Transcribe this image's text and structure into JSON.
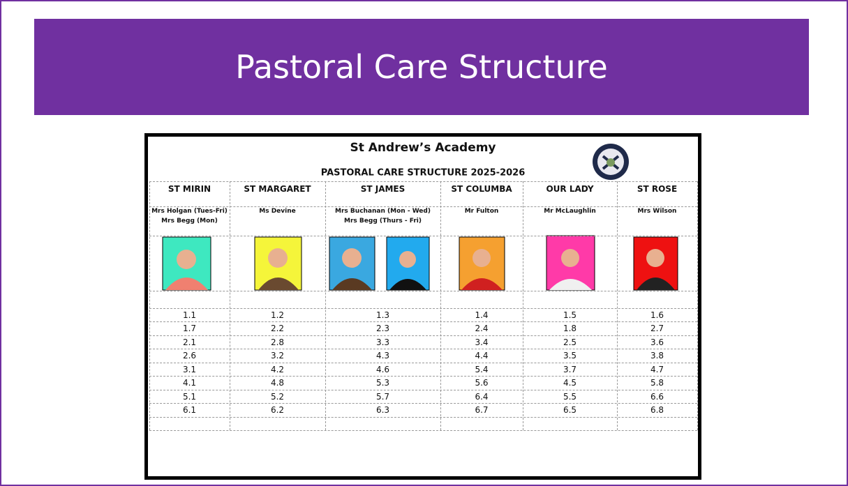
{
  "header": {
    "title": "Pastoral Care Structure"
  },
  "document": {
    "school": "St Andrew’s Academy",
    "subtitle": "PASTORAL CARE STRUCTURE 2025-2026"
  },
  "table": {
    "houses": [
      "ST MIRIN",
      "ST MARGARET",
      "ST JAMES",
      "ST COLUMBA",
      "OUR LADY",
      "ST ROSE"
    ],
    "staff": [
      [
        "Mrs Holgan (Tues-Fri)",
        "Mrs Begg (Mon)"
      ],
      [
        "Ms Devine"
      ],
      [
        "Mrs Buchanan (Mon - Wed)",
        "Mrs Begg (Thurs - Fri)"
      ],
      [
        "Mr Fulton"
      ],
      [
        "Mr McLaughlin"
      ],
      [
        "Mrs Wilson"
      ]
    ],
    "rows": [
      [
        "1.1",
        "1.2",
        "1.3",
        "1.4",
        "1.5",
        "1.6"
      ],
      [
        "1.7",
        "2.2",
        "2.3",
        "2.4",
        "1.8",
        "2.7"
      ],
      [
        "2.1",
        "2.8",
        "3.3",
        "3.4",
        "2.5",
        "3.6"
      ],
      [
        "2.6",
        "3.2",
        "4.3",
        "4.4",
        "3.5",
        "3.8"
      ],
      [
        "3.1",
        "4.2",
        "4.6",
        "5.4",
        "3.7",
        "4.7"
      ],
      [
        "4.1",
        "4.8",
        "5.3",
        "5.6",
        "4.5",
        "5.8"
      ],
      [
        "5.1",
        "5.2",
        "5.7",
        "6.4",
        "5.5",
        "6.6"
      ],
      [
        "6.1",
        "6.2",
        "6.3",
        "6.7",
        "6.5",
        "6.8"
      ]
    ]
  }
}
